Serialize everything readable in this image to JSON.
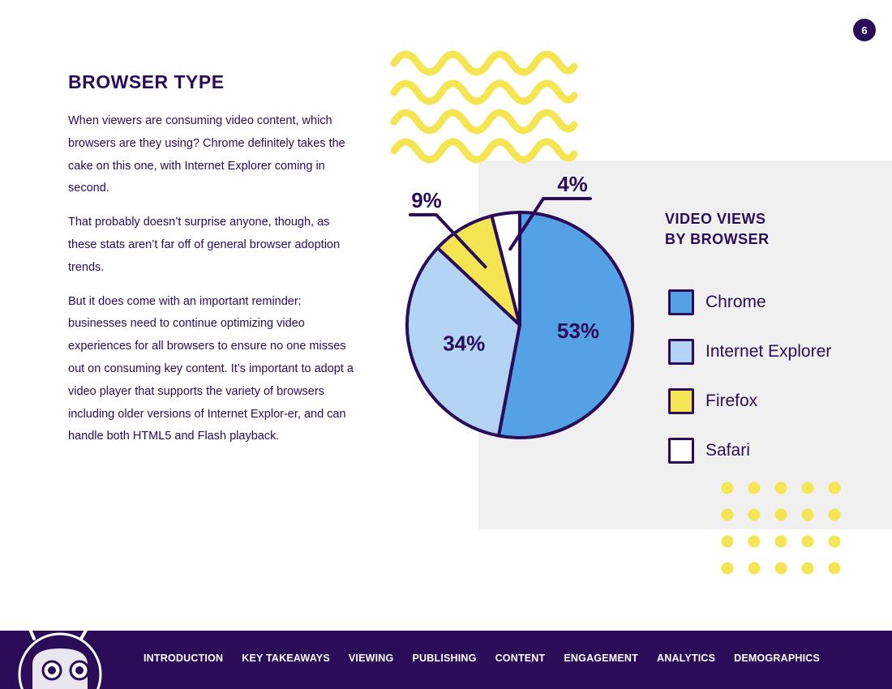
{
  "page": {
    "number": "6",
    "title": "BROWSER TYPE",
    "paragraphs": [
      "When viewers are consuming video content, which browsers are they using? Chrome definitely takes the cake on this one, with Internet Explorer coming in second.",
      "That probably doesn’t surprise anyone, though, as these stats aren’t far off of general browser adoption trends.",
      "But it does come with an important reminder: businesses need to continue optimizing video experiences for all browsers to ensure no one misses out on consuming key content. It’s important to adopt a video player that supports the variety of browsers including older versions of Internet Explor-er, and can handle both HTML5 and Flash playback."
    ]
  },
  "chart_data": {
    "type": "pie",
    "title": "VIDEO VIEWS BY BROWSER",
    "title_lines": [
      "VIDEO VIEWS",
      "BY BROWSER"
    ],
    "categories": [
      "Chrome",
      "Internet Explorer",
      "Firefox",
      "Safari"
    ],
    "values": [
      53,
      34,
      9,
      4
    ],
    "labels": [
      "53%",
      "34%",
      "9%",
      "4%"
    ],
    "colors": [
      "#55a1e6",
      "#b3d4f5",
      "#f5e553",
      "#ffffff"
    ],
    "outline_color": "#2a0c58",
    "legend_position": "right"
  },
  "nav": {
    "items": [
      "INTRODUCTION",
      "KEY TAKEAWAYS",
      "VIEWING",
      "PUBLISHING",
      "CONTENT",
      "ENGAGEMENT",
      "ANALYTICS",
      "DEMOGRAPHICS"
    ]
  },
  "colors": {
    "primary": "#2a0c58",
    "accent_yellow": "#f5e553",
    "panel_gray": "#f0f0f0"
  },
  "icons": {
    "mascot": "robot-mascot-icon",
    "waves": "wave-pattern-icon",
    "dots": "dot-grid-icon"
  }
}
